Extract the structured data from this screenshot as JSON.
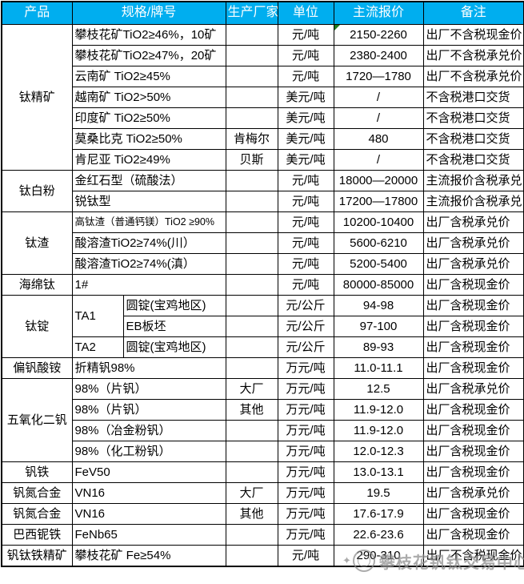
{
  "colors": {
    "header_bg": "#00AEEF",
    "header_text": "#FFFFFF",
    "border": "#000000",
    "cell_flag_green": "#1E7B1E",
    "watermark_gray": "#8C8C8C"
  },
  "table": {
    "columns": [
      "产品",
      "规格/牌号",
      "生产厂家",
      "单位",
      "主流报价",
      "备注"
    ],
    "rows": [
      {
        "cells": [
          {
            "t": "钛精矿",
            "name": "product",
            "rs": 7
          },
          {
            "t": "攀枝花矿TiO2≥46%，10矿",
            "name": "spec",
            "cs": 2
          },
          {
            "t": "",
            "name": "maker"
          },
          {
            "t": "元/吨",
            "name": "unit"
          },
          {
            "t": "2150-2260",
            "name": "price",
            "flag": true
          },
          {
            "t": "出厂不含税现金价",
            "name": "note"
          }
        ]
      },
      {
        "cells": [
          {
            "t": "攀枝花矿TiO2≥47%，20矿",
            "name": "spec",
            "cs": 2
          },
          {
            "t": "",
            "name": "maker"
          },
          {
            "t": "元/吨",
            "name": "unit"
          },
          {
            "t": "2380-2400",
            "name": "price"
          },
          {
            "t": "出厂不含税承兑价",
            "name": "note"
          }
        ]
      },
      {
        "cells": [
          {
            "t": "云南矿 TiO2≥45%",
            "name": "spec",
            "cs": 2
          },
          {
            "t": "",
            "name": "maker"
          },
          {
            "t": "元/吨",
            "name": "unit"
          },
          {
            "t": "1720—1780",
            "name": "price"
          },
          {
            "t": "出厂不含税承兑价",
            "name": "note"
          }
        ]
      },
      {
        "cells": [
          {
            "t": "越南矿 TiO2>50%",
            "name": "spec",
            "cs": 2
          },
          {
            "t": "",
            "name": "maker"
          },
          {
            "t": "美元/吨",
            "name": "unit"
          },
          {
            "t": "/",
            "name": "price"
          },
          {
            "t": "不含税港口交货",
            "name": "note"
          }
        ]
      },
      {
        "cells": [
          {
            "t": "印度矿 TiO2≥50%",
            "name": "spec",
            "cs": 2
          },
          {
            "t": "",
            "name": "maker"
          },
          {
            "t": "美元/吨",
            "name": "unit"
          },
          {
            "t": "/",
            "name": "price"
          },
          {
            "t": "不含税港口交货",
            "name": "note"
          }
        ]
      },
      {
        "cells": [
          {
            "t": "莫桑比克 TiO2≥50%",
            "name": "spec",
            "cs": 2
          },
          {
            "t": "肯梅尔",
            "name": "maker"
          },
          {
            "t": "美元/吨",
            "name": "unit"
          },
          {
            "t": "480",
            "name": "price"
          },
          {
            "t": "不含税港口交货",
            "name": "note"
          }
        ]
      },
      {
        "cells": [
          {
            "t": "肯尼亚 TiO2≥49%",
            "name": "spec",
            "cs": 2
          },
          {
            "t": "贝斯",
            "name": "maker"
          },
          {
            "t": "美元/吨",
            "name": "unit"
          },
          {
            "t": "/",
            "name": "price"
          },
          {
            "t": "不含税港口交货",
            "name": "note"
          }
        ]
      },
      {
        "cells": [
          {
            "t": "钛白粉",
            "name": "product",
            "rs": 2
          },
          {
            "t": "金红石型（硫酸法）",
            "name": "spec",
            "cs": 2
          },
          {
            "t": "",
            "name": "maker"
          },
          {
            "t": "元/吨",
            "name": "unit"
          },
          {
            "t": "18000—20000",
            "name": "price"
          },
          {
            "t": "主流报价含税承兑",
            "name": "note"
          }
        ]
      },
      {
        "cells": [
          {
            "t": "锐钛型",
            "name": "spec",
            "cs": 2
          },
          {
            "t": "",
            "name": "maker"
          },
          {
            "t": "元/吨",
            "name": "unit"
          },
          {
            "t": "17200—17800",
            "name": "price"
          },
          {
            "t": "主流报价含税承兑",
            "name": "note"
          }
        ]
      },
      {
        "cells": [
          {
            "t": "钛渣",
            "name": "product",
            "rs": 3
          },
          {
            "t": "高钛渣（普通钙镁）TiO2 ≥90%",
            "name": "spec",
            "cs": 2,
            "small": true
          },
          {
            "t": "",
            "name": "maker"
          },
          {
            "t": "元/吨",
            "name": "unit"
          },
          {
            "t": "10200-10400",
            "name": "price"
          },
          {
            "t": "出厂含税承兑价",
            "name": "note"
          }
        ]
      },
      {
        "cells": [
          {
            "t": "酸溶渣TiO2≥74%(川）",
            "name": "spec",
            "cs": 2
          },
          {
            "t": "",
            "name": "maker"
          },
          {
            "t": "元/吨",
            "name": "unit"
          },
          {
            "t": "5600-6210",
            "name": "price"
          },
          {
            "t": "出厂含税承兑价",
            "name": "note"
          }
        ]
      },
      {
        "cells": [
          {
            "t": "酸溶渣TiO2≥74%(滇）",
            "name": "spec",
            "cs": 2
          },
          {
            "t": "",
            "name": "maker"
          },
          {
            "t": "元/吨",
            "name": "unit"
          },
          {
            "t": "5200-5400",
            "name": "price"
          },
          {
            "t": "出厂含税承兑价",
            "name": "note"
          }
        ]
      },
      {
        "cells": [
          {
            "t": "海绵钛",
            "name": "product"
          },
          {
            "t": "1#",
            "name": "spec",
            "cs": 2
          },
          {
            "t": "",
            "name": "maker"
          },
          {
            "t": "元/吨",
            "name": "unit"
          },
          {
            "t": "80000-85000",
            "name": "price"
          },
          {
            "t": "出厂含税现金价",
            "name": "note"
          }
        ]
      },
      {
        "cells": [
          {
            "t": "钛锭",
            "name": "product",
            "rs": 3
          },
          {
            "t": "TA1",
            "name": "spec",
            "rs": 2
          },
          {
            "t": "圆锭(宝鸡地区)",
            "name": "spec2"
          },
          {
            "t": "",
            "name": "maker"
          },
          {
            "t": "元/公斤",
            "name": "unit"
          },
          {
            "t": "94-98",
            "name": "price"
          },
          {
            "t": "出厂含税现金价",
            "name": "note"
          }
        ]
      },
      {
        "cells": [
          {
            "t": "EB板坯",
            "name": "spec2"
          },
          {
            "t": "",
            "name": "maker"
          },
          {
            "t": "元/公斤",
            "name": "unit"
          },
          {
            "t": "97-100",
            "name": "price"
          },
          {
            "t": "出厂含税现金价",
            "name": "note"
          }
        ]
      },
      {
        "cells": [
          {
            "t": "TA2",
            "name": "spec"
          },
          {
            "t": "圆锭(宝鸡地区)",
            "name": "spec2"
          },
          {
            "t": "",
            "name": "maker"
          },
          {
            "t": "元/公斤",
            "name": "unit"
          },
          {
            "t": "89-93",
            "name": "price"
          },
          {
            "t": "出厂含税现金价",
            "name": "note"
          }
        ]
      },
      {
        "cells": [
          {
            "t": "偏钒酸铵",
            "name": "product"
          },
          {
            "t": "折精钒98%",
            "name": "spec",
            "cs": 2
          },
          {
            "t": "",
            "name": "maker"
          },
          {
            "t": "万元/吨",
            "name": "unit"
          },
          {
            "t": "11.0-11.1",
            "name": "price"
          },
          {
            "t": "出厂含税现金价",
            "name": "note"
          }
        ]
      },
      {
        "cells": [
          {
            "t": "五氧化二钒",
            "name": "product",
            "rs": 4
          },
          {
            "t": "98%（片钒）",
            "name": "spec",
            "cs": 2
          },
          {
            "t": "大厂",
            "name": "maker"
          },
          {
            "t": "万元/吨",
            "name": "unit"
          },
          {
            "t": "12.5",
            "name": "price"
          },
          {
            "t": "出厂含税承兑价",
            "name": "note"
          }
        ]
      },
      {
        "cells": [
          {
            "t": "98%（片钒）",
            "name": "spec",
            "cs": 2
          },
          {
            "t": "其他",
            "name": "maker"
          },
          {
            "t": "万元/吨",
            "name": "unit"
          },
          {
            "t": "11.9-12.0",
            "name": "price"
          },
          {
            "t": "出厂含税现金价",
            "name": "note"
          }
        ]
      },
      {
        "cells": [
          {
            "t": "98%（冶金粉钒）",
            "name": "spec",
            "cs": 2
          },
          {
            "t": "",
            "name": "maker"
          },
          {
            "t": "万元/吨",
            "name": "unit"
          },
          {
            "t": "11.9-12.0",
            "name": "price"
          },
          {
            "t": "出厂含税现金价",
            "name": "note"
          }
        ]
      },
      {
        "cells": [
          {
            "t": "98%（化工粉钒）",
            "name": "spec",
            "cs": 2
          },
          {
            "t": "",
            "name": "maker"
          },
          {
            "t": "万元/吨",
            "name": "unit"
          },
          {
            "t": "12.0-12.3",
            "name": "price"
          },
          {
            "t": "出厂含税现金价",
            "name": "note"
          }
        ]
      },
      {
        "cells": [
          {
            "t": "钒铁",
            "name": "product"
          },
          {
            "t": "FeV50",
            "name": "spec",
            "cs": 2
          },
          {
            "t": "",
            "name": "maker"
          },
          {
            "t": "万元/吨",
            "name": "unit"
          },
          {
            "t": "13.0-13.1",
            "name": "price"
          },
          {
            "t": "出厂含税现金价",
            "name": "note"
          }
        ]
      },
      {
        "cells": [
          {
            "t": "钒氮合金",
            "name": "product"
          },
          {
            "t": "VN16",
            "name": "spec",
            "cs": 2
          },
          {
            "t": "大厂",
            "name": "maker"
          },
          {
            "t": "万元/吨",
            "name": "unit"
          },
          {
            "t": "19.5",
            "name": "price"
          },
          {
            "t": "出厂含税承兑价",
            "name": "note"
          }
        ]
      },
      {
        "cells": [
          {
            "t": "钒氮合金",
            "name": "product"
          },
          {
            "t": "VN16",
            "name": "spec",
            "cs": 2
          },
          {
            "t": "其他",
            "name": "maker"
          },
          {
            "t": "万元/吨",
            "name": "unit"
          },
          {
            "t": "17.6-17.9",
            "name": "price"
          },
          {
            "t": "出厂含税现金价",
            "name": "note"
          }
        ]
      },
      {
        "cells": [
          {
            "t": "巴西铌铁",
            "name": "product"
          },
          {
            "t": "FeNb65",
            "name": "spec",
            "cs": 2
          },
          {
            "t": "",
            "name": "maker"
          },
          {
            "t": "万元/吨",
            "name": "unit"
          },
          {
            "t": "22.6-23.6",
            "name": "price"
          },
          {
            "t": "出厂含税现金价",
            "name": "note"
          }
        ]
      },
      {
        "cells": [
          {
            "t": "钒钛铁精矿",
            "name": "product"
          },
          {
            "t": "攀枝花矿 Fe≥54%",
            "name": "spec",
            "cs": 2
          },
          {
            "t": "",
            "name": "maker"
          },
          {
            "t": "元/吨",
            "name": "unit"
          },
          {
            "t": "290-310",
            "name": "price"
          },
          {
            "t": "出厂不含税现金价",
            "name": "note"
          }
        ]
      }
    ]
  },
  "watermark": {
    "spark": "✦",
    "logo": "circle-logo",
    "text": "攀枝花钒钛交易中心"
  }
}
